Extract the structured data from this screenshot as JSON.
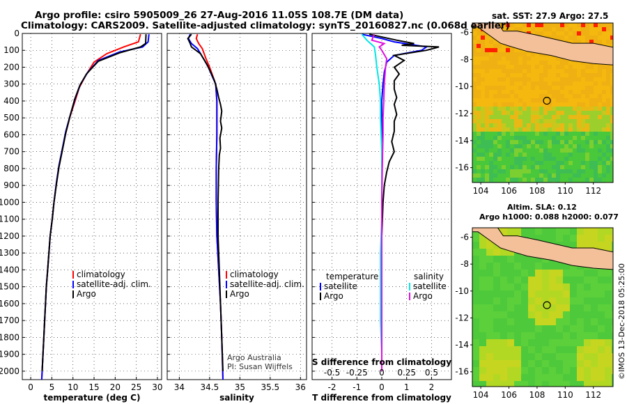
{
  "header": {
    "title_line1": "Argo profile: csiro 5905009_26 27-Aug-2016 11.05S 108.7E (DM data)",
    "title_line2": "Climatology: CARS2009. Satellite-adjusted climatology: synTS_20160827.nc (0.068d earlier)"
  },
  "maps": {
    "top_title": "sat. SST: 27.9 Argo: 27.5",
    "bottom_title_line1": "Altim. SLA: 0.12",
    "bottom_title_line2": "Argo h1000: 0.088 h2000: 0.077",
    "lat_ticks": [
      "-6",
      "-8",
      "-10",
      "-12",
      "-14",
      "-16"
    ],
    "lon_ticks": [
      "104",
      "106",
      "108",
      "110",
      "112"
    ],
    "colors": {
      "sea_warm": "#f2b10f",
      "sea_green": "#4fc93a",
      "land": "#f3c09a",
      "hot": "#ff2000"
    }
  },
  "footer": {
    "credit": "©IMOS 13-Dec-2018 05:25:00"
  },
  "chart_data": [
    {
      "type": "line",
      "id": "temperature",
      "xlabel": "temperature (deg C)",
      "ylabel": "",
      "xlim": [
        -2,
        31
      ],
      "ylim": [
        2050,
        0
      ],
      "xticks": [
        0,
        5,
        10,
        15,
        20,
        25,
        30
      ],
      "yticks": [
        0,
        100,
        200,
        300,
        400,
        500,
        600,
        700,
        800,
        900,
        1000,
        1100,
        1200,
        1300,
        1400,
        1500,
        1600,
        1700,
        1800,
        1900,
        2000
      ],
      "legend": [
        "climatology",
        "satellite-adj. clim.",
        "Argo"
      ],
      "series": [
        {
          "name": "climatology",
          "color": "#ff0000",
          "points": [
            [
              26,
              5
            ],
            [
              25.5,
              50
            ],
            [
              22,
              80
            ],
            [
              18,
              120
            ],
            [
              15,
              170
            ],
            [
              13,
              250
            ],
            [
              11.5,
              320
            ],
            [
              10.5,
              400
            ],
            [
              9.2,
              500
            ],
            [
              8.2,
              600
            ],
            [
              7.4,
              700
            ],
            [
              6.6,
              800
            ],
            [
              6,
              900
            ],
            [
              5.5,
              1000
            ],
            [
              5.1,
              1100
            ],
            [
              4.6,
              1200
            ],
            [
              4.3,
              1300
            ],
            [
              4.0,
              1400
            ],
            [
              3.7,
              1500
            ],
            [
              3.5,
              1600
            ],
            [
              3.3,
              1700
            ],
            [
              3.1,
              1800
            ],
            [
              2.9,
              1900
            ],
            [
              2.7,
              2000
            ],
            [
              2.6,
              2050
            ]
          ]
        },
        {
          "name": "satellite-adj. clim.",
          "color": "#0000ff",
          "points": [
            [
              28,
              5
            ],
            [
              27.8,
              50
            ],
            [
              26.5,
              80
            ],
            [
              21,
              110
            ],
            [
              16,
              160
            ],
            [
              13.5,
              230
            ],
            [
              11.8,
              300
            ],
            [
              10.6,
              380
            ],
            [
              9.4,
              480
            ],
            [
              8.3,
              580
            ],
            [
              7.5,
              680
            ],
            [
              6.7,
              780
            ],
            [
              6.1,
              880
            ],
            [
              5.5,
              1000
            ],
            [
              5.1,
              1100
            ],
            [
              4.6,
              1200
            ],
            [
              4.3,
              1300
            ],
            [
              4.0,
              1400
            ],
            [
              3.7,
              1500
            ],
            [
              3.5,
              1600
            ],
            [
              3.3,
              1700
            ],
            [
              3.1,
              1800
            ],
            [
              2.9,
              1900
            ],
            [
              2.7,
              2000
            ],
            [
              2.6,
              2050
            ]
          ]
        },
        {
          "name": "Argo",
          "color": "#000000",
          "points": [
            [
              27.3,
              5
            ],
            [
              27.2,
              60
            ],
            [
              26,
              80
            ],
            [
              21,
              115
            ],
            [
              16,
              165
            ],
            [
              13.2,
              240
            ],
            [
              11.6,
              310
            ],
            [
              10.4,
              390
            ],
            [
              9.3,
              490
            ],
            [
              8.3,
              590
            ],
            [
              7.5,
              690
            ],
            [
              6.7,
              790
            ],
            [
              6.1,
              890
            ],
            [
              5.5,
              1000
            ],
            [
              5.1,
              1100
            ],
            [
              4.6,
              1200
            ],
            [
              4.3,
              1300
            ],
            [
              4.0,
              1400
            ],
            [
              3.7,
              1500
            ],
            [
              3.5,
              1600
            ],
            [
              3.3,
              1700
            ],
            [
              3.1,
              1800
            ],
            [
              2.9,
              1900
            ],
            [
              2.7,
              2000
            ]
          ]
        }
      ]
    },
    {
      "type": "line",
      "id": "salinity",
      "xlabel": "salinity",
      "ylabel": "",
      "xlim": [
        33.8,
        36.1
      ],
      "ylim": [
        2050,
        0
      ],
      "xticks": [
        34,
        34.5,
        35,
        35.5,
        36
      ],
      "legend": [
        "climatology",
        "satellite-adj. clim.",
        "Argo"
      ],
      "annotation_line1": "Argo Australia",
      "annotation_line2": "PI: Susan Wijffels",
      "series": [
        {
          "name": "climatology",
          "color": "#ff0000",
          "points": [
            [
              34.3,
              5
            ],
            [
              34.28,
              30
            ],
            [
              34.32,
              60
            ],
            [
              34.38,
              90
            ],
            [
              34.44,
              150
            ],
            [
              34.5,
              200
            ],
            [
              34.56,
              260
            ],
            [
              34.6,
              300
            ],
            [
              34.62,
              400
            ],
            [
              34.62,
              600
            ],
            [
              34.61,
              800
            ],
            [
              34.61,
              1000
            ],
            [
              34.62,
              1200
            ],
            [
              34.65,
              1400
            ],
            [
              34.68,
              1600
            ],
            [
              34.7,
              1800
            ],
            [
              34.72,
              2050
            ]
          ]
        },
        {
          "name": "satellite-adj. clim.",
          "color": "#0000ff",
          "points": [
            [
              34.18,
              5
            ],
            [
              34.15,
              30
            ],
            [
              34.2,
              60
            ],
            [
              34.3,
              90
            ],
            [
              34.4,
              150
            ],
            [
              34.48,
              200
            ],
            [
              34.55,
              260
            ],
            [
              34.6,
              300
            ],
            [
              34.62,
              400
            ],
            [
              34.62,
              600
            ],
            [
              34.61,
              800
            ],
            [
              34.61,
              1000
            ],
            [
              34.62,
              1200
            ],
            [
              34.65,
              1400
            ],
            [
              34.68,
              1600
            ],
            [
              34.7,
              1800
            ],
            [
              34.72,
              2050
            ]
          ]
        },
        {
          "name": "Argo",
          "color": "#000000",
          "points": [
            [
              34.2,
              5
            ],
            [
              34.14,
              30
            ],
            [
              34.18,
              60
            ],
            [
              34.2,
              80
            ],
            [
              34.35,
              120
            ],
            [
              34.45,
              180
            ],
            [
              34.52,
              230
            ],
            [
              34.58,
              280
            ],
            [
              34.62,
              330
            ],
            [
              34.65,
              380
            ],
            [
              34.68,
              420
            ],
            [
              34.7,
              460
            ],
            [
              34.68,
              520
            ],
            [
              34.7,
              560
            ],
            [
              34.67,
              620
            ],
            [
              34.68,
              680
            ],
            [
              34.66,
              720
            ],
            [
              34.65,
              800
            ],
            [
              34.64,
              1000
            ],
            [
              34.64,
              1200
            ],
            [
              34.66,
              1400
            ],
            [
              34.68,
              1600
            ],
            [
              34.7,
              1800
            ],
            [
              34.72,
              2000
            ]
          ]
        }
      ]
    },
    {
      "type": "line",
      "id": "difference",
      "xlabel": "T difference from climatology",
      "xlabel2": "S difference from climatology",
      "ylabel": "",
      "xlim": [
        -2.8,
        2.8
      ],
      "ylim": [
        2050,
        0
      ],
      "xticks": [
        -2,
        -1,
        0,
        1,
        2
      ],
      "xticks2": [
        "-0.5",
        "-0.25",
        "0",
        "0.25",
        "0.5"
      ],
      "legend_left_title": "temperature",
      "legend_right_title": "salinity",
      "legend": [
        "satellite",
        "Argo",
        "satellite",
        "Argo"
      ],
      "series": [
        {
          "name": "satellite",
          "color": "#0000ff",
          "points": [
            [
              -0.8,
              5
            ],
            [
              0,
              30
            ],
            [
              0.5,
              50
            ],
            [
              1.8,
              80
            ],
            [
              1.6,
              100
            ],
            [
              0.5,
              130
            ],
            [
              0.2,
              170
            ],
            [
              0.1,
              230
            ],
            [
              0.05,
              300
            ],
            [
              0,
              400
            ],
            [
              0,
              600
            ],
            [
              0,
              800
            ],
            [
              0,
              1000
            ],
            [
              0,
              1200
            ],
            [
              0,
              1400
            ],
            [
              0,
              1600
            ],
            [
              0,
              1800
            ],
            [
              0,
              2000
            ]
          ]
        },
        {
          "name": "Argo",
          "color": "#000000",
          "points": [
            [
              -0.5,
              5
            ],
            [
              0.6,
              40
            ],
            [
              1.3,
              60
            ],
            [
              0.8,
              70
            ],
            [
              2.3,
              80
            ],
            [
              1.8,
              100
            ],
            [
              0.5,
              130
            ],
            [
              0.9,
              160
            ],
            [
              0.5,
              200
            ],
            [
              0.7,
              240
            ],
            [
              0.5,
              280
            ],
            [
              0.5,
              330
            ],
            [
              0.6,
              380
            ],
            [
              0.5,
              420
            ],
            [
              0.6,
              480
            ],
            [
              0.5,
              520
            ],
            [
              0.5,
              580
            ],
            [
              0.4,
              640
            ],
            [
              0.5,
              700
            ],
            [
              0.3,
              760
            ],
            [
              0.2,
              820
            ],
            [
              0.1,
              900
            ],
            [
              0.05,
              1000
            ],
            [
              0,
              1200
            ],
            [
              0,
              1400
            ],
            [
              0,
              1600
            ],
            [
              0,
              1800
            ],
            [
              0,
              2000
            ]
          ]
        },
        {
          "name": "satellite",
          "color": "#00e5e5",
          "points": [
            [
              -0.8,
              5
            ],
            [
              -0.6,
              40
            ],
            [
              -0.3,
              80
            ],
            [
              -0.25,
              130
            ],
            [
              -0.2,
              200
            ],
            [
              -0.1,
              300
            ],
            [
              -0.05,
              400
            ],
            [
              -0.05,
              500
            ],
            [
              0,
              700
            ],
            [
              0,
              900
            ],
            [
              0,
              1100
            ],
            [
              -0.05,
              1300
            ],
            [
              -0.05,
              1500
            ],
            [
              -0.05,
              1700
            ],
            [
              0,
              1900
            ],
            [
              0,
              2000
            ]
          ]
        },
        {
          "name": "Argo",
          "color": "#e010e0",
          "points": [
            [
              -0.3,
              5
            ],
            [
              -0.4,
              40
            ],
            [
              0.1,
              60
            ],
            [
              -0.1,
              80
            ],
            [
              0,
              100
            ],
            [
              0.2,
              150
            ],
            [
              0.15,
              200
            ],
            [
              0.1,
              300
            ],
            [
              0.08,
              400
            ],
            [
              0.05,
              500
            ],
            [
              0.05,
              600
            ],
            [
              0.02,
              800
            ],
            [
              0,
              1000
            ],
            [
              0,
              1200
            ],
            [
              0,
              1400
            ],
            [
              0,
              1600
            ],
            [
              0,
              1800
            ],
            [
              0,
              2000
            ]
          ]
        }
      ]
    }
  ]
}
